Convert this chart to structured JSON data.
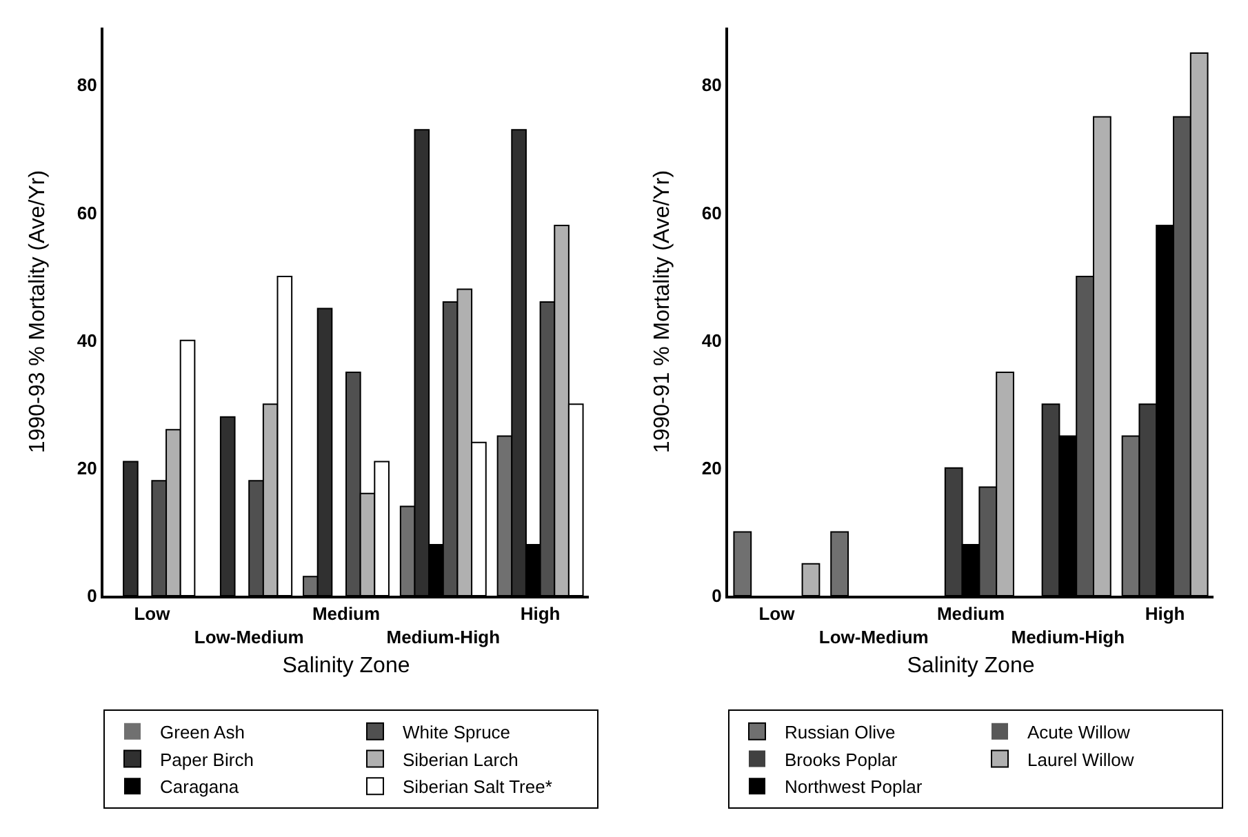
{
  "chart_data": [
    {
      "type": "bar",
      "xlabel": "Salinity Zone",
      "ylabel": "1990-93 % Mortality (Ave/Yr)",
      "categories": [
        "Low",
        "Low-Medium",
        "Medium",
        "Medium-High",
        "High"
      ],
      "ylim": [
        0,
        89
      ],
      "yticks": [
        0,
        20,
        40,
        60,
        80
      ],
      "grid": false,
      "legend": "bottom",
      "series": [
        {
          "name": "Green Ash",
          "color": "#707070",
          "values": [
            0,
            0,
            3,
            14,
            25
          ]
        },
        {
          "name": "Paper Birch",
          "color": "#303030",
          "values": [
            21,
            28,
            45,
            73,
            73
          ]
        },
        {
          "name": "Caragana",
          "color": "#000000",
          "values": [
            0,
            0,
            0,
            8,
            8
          ]
        },
        {
          "name": "White Spruce",
          "color": "#505050",
          "values": [
            18,
            18,
            35,
            46,
            46
          ]
        },
        {
          "name": "Siberian Larch",
          "color": "#b0b0b0",
          "values": [
            26,
            30,
            16,
            48,
            58
          ]
        },
        {
          "name": "Siberian Salt Tree*",
          "color": "#ffffff",
          "values": [
            40,
            50,
            21,
            24,
            30
          ]
        }
      ]
    },
    {
      "type": "bar",
      "xlabel": "Salinity Zone",
      "ylabel": "1990-91 % Mortality (Ave/Yr)",
      "categories": [
        "Low",
        "Low-Medium",
        "Medium",
        "Medium-High",
        "High"
      ],
      "ylim": [
        0,
        89
      ],
      "yticks": [
        0,
        20,
        40,
        60,
        80
      ],
      "grid": false,
      "legend": "bottom",
      "series": [
        {
          "name": "Russian Olive",
          "color": "#707070",
          "values": [
            10,
            10,
            0,
            0,
            25
          ]
        },
        {
          "name": "Brooks Poplar",
          "color": "#404040",
          "values": [
            0,
            0,
            20,
            30,
            30
          ]
        },
        {
          "name": "Northwest Poplar",
          "color": "#000000",
          "values": [
            0,
            0,
            8,
            25,
            58
          ]
        },
        {
          "name": "Acute Willow",
          "color": "#585858",
          "values": [
            0,
            0,
            17,
            50,
            75
          ]
        },
        {
          "name": "Laurel Willow",
          "color": "#b0b0b0",
          "values": [
            5,
            0,
            35,
            75,
            85
          ]
        }
      ]
    }
  ]
}
